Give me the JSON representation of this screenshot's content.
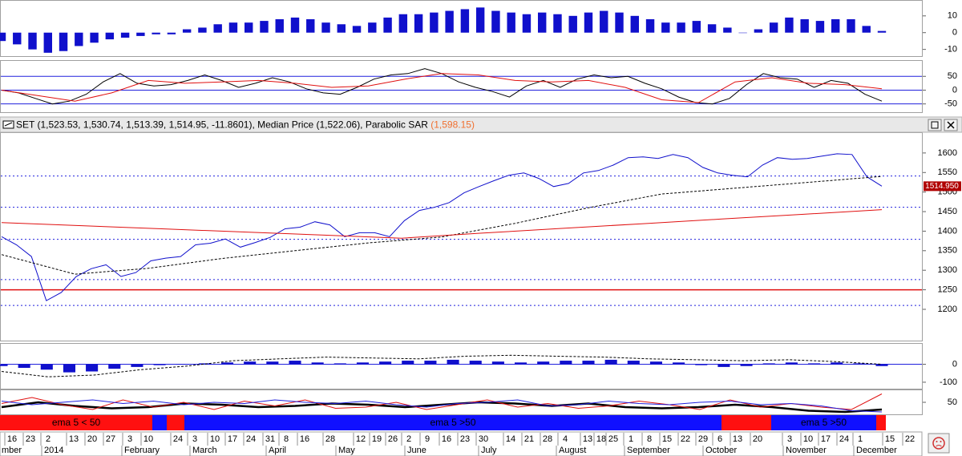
{
  "chart_data": [
    {
      "type": "bar",
      "color": "#1010cc",
      "values": [
        -5,
        -7,
        -10,
        -12,
        -11,
        -8,
        -6,
        -4,
        -3,
        -2,
        -1,
        -1,
        2,
        3,
        5,
        6,
        6,
        7,
        8,
        9,
        8,
        6,
        5,
        4,
        6,
        9,
        11,
        11,
        12,
        13,
        14,
        15,
        13,
        12,
        11,
        12,
        11,
        10,
        12,
        13,
        12,
        10,
        8,
        6,
        6,
        7,
        5,
        3,
        0,
        2,
        6,
        9,
        8,
        7,
        8,
        8,
        4,
        1
      ],
      "ylim": [
        -14,
        19
      ],
      "yticks": [
        10,
        0,
        -10
      ]
    },
    {
      "type": "line",
      "grid": true,
      "grid_color": "#2020dd",
      "series": [
        {
          "color": "#000000",
          "values": [
            0,
            -10,
            -30,
            -50,
            -40,
            -15,
            30,
            60,
            25,
            15,
            20,
            35,
            55,
            35,
            10,
            25,
            45,
            30,
            5,
            -10,
            -15,
            10,
            40,
            55,
            60,
            78,
            60,
            30,
            10,
            -5,
            -25,
            15,
            35,
            10,
            40,
            55,
            45,
            50,
            25,
            5,
            -25,
            -45,
            -50,
            -30,
            20,
            60,
            45,
            40,
            10,
            35,
            25,
            -15,
            -40
          ]
        },
        {
          "color": "#e01010",
          "values": [
            0,
            -20,
            -40,
            -10,
            35,
            25,
            30,
            35,
            25,
            10,
            15,
            40,
            60,
            55,
            35,
            30,
            35,
            10,
            -35,
            -45,
            30,
            45,
            25,
            20,
            5
          ]
        }
      ],
      "ylim": [
        -80,
        106
      ],
      "yticks": [
        50,
        0,
        -50
      ]
    },
    {
      "type": "line",
      "legend": [
        "SET (1,523.53, 1,530.74, 1,513.39, 1,514.95, -11.8601),",
        " Median Price (1,522.06),",
        " Parabolic SAR "
      ],
      "sar_label": "(1,598.15)",
      "sar_color": "#f07030",
      "series": [
        {
          "color": "#1010cc",
          "values": [
            1386,
            1365,
            1335,
            1222,
            1243,
            1284,
            1304,
            1314,
            1284,
            1294,
            1324,
            1331,
            1335,
            1365,
            1369,
            1380,
            1359,
            1371,
            1384,
            1406,
            1410,
            1424,
            1416,
            1386,
            1396,
            1396,
            1386,
            1427,
            1453,
            1461,
            1473,
            1498,
            1514,
            1529,
            1543,
            1549,
            1535,
            1514,
            1522,
            1549,
            1555,
            1569,
            1588,
            1590,
            1586,
            1596,
            1588,
            1563,
            1549,
            1543,
            1539,
            1569,
            1588,
            1584,
            1586,
            1592,
            1598,
            1596,
            1539,
            1515
          ]
        },
        {
          "color": "#000000",
          "dashed": true,
          "values": [
            1340,
            1290,
            1305,
            1330,
            1350,
            1370,
            1385,
            1420,
            1460,
            1495,
            1510,
            1525,
            1540
          ]
        },
        {
          "color": "#e01010",
          "values": [
            1422,
            1414,
            1406,
            1398,
            1390,
            1382,
            1395,
            1407,
            1419,
            1431,
            1443,
            1455
          ]
        }
      ],
      "levels": [
        1541,
        1461,
        1379,
        1276,
        1210
      ],
      "level_color": "#2020dd",
      "hline": 1250,
      "hline_color": "#e01010",
      "last_value": 1514.95,
      "last_value_label": "1514.950",
      "ylim": [
        1120,
        1651
      ],
      "yticks": [
        1600,
        1550,
        1500,
        1450,
        1400,
        1350,
        1300,
        1250,
        1200
      ]
    },
    {
      "type": "bar",
      "color": "#1010cc",
      "zero_color": "#2020dd",
      "values": [
        -10,
        -20,
        -30,
        -45,
        -40,
        -25,
        -15,
        -5,
        0,
        5,
        10,
        15,
        15,
        20,
        10,
        5,
        10,
        15,
        20,
        20,
        25,
        20,
        15,
        10,
        15,
        20,
        20,
        25,
        20,
        15,
        10,
        -5,
        -15,
        -10,
        5,
        10,
        5,
        10,
        5,
        -10
      ],
      "series": [
        {
          "color": "#000000",
          "dashed": true,
          "values": [
            -40,
            -70,
            -60,
            -30,
            -10,
            20,
            30,
            40,
            35,
            30,
            45,
            50,
            45,
            40,
            30,
            25,
            20,
            25,
            15,
            0
          ]
        }
      ],
      "ylim": [
        -136,
        114
      ],
      "yticks": [
        0,
        -100
      ]
    },
    {
      "type": "line",
      "series": [
        {
          "color": "#000000",
          "width": 2.5,
          "values": [
            30,
            50,
            35,
            25,
            30,
            45,
            40,
            30,
            35,
            45,
            40,
            30,
            40,
            50,
            45,
            35,
            45,
            30,
            25,
            30,
            40,
            30,
            15,
            10,
            20
          ]
        },
        {
          "color": "#e01010",
          "values": [
            45,
            70,
            40,
            20,
            60,
            30,
            50,
            20,
            55,
            35,
            60,
            25,
            30,
            50,
            20,
            40,
            60,
            30,
            45,
            25,
            35,
            55,
            40,
            20,
            60,
            30,
            45,
            30,
            20,
            85
          ]
        },
        {
          "color": "#2020dd",
          "values": [
            55,
            40,
            50,
            60,
            45,
            55,
            40,
            50,
            45,
            60,
            50,
            45,
            55,
            40,
            30,
            45,
            50,
            60,
            35,
            40,
            55,
            45,
            40,
            50,
            55,
            40,
            45,
            35,
            15,
            10
          ]
        }
      ],
      "ylim": [
        0,
        100
      ],
      "yticks": [
        50
      ]
    },
    {
      "type": "band",
      "segments": [
        {
          "color": "#ff1010",
          "label": "ema 5 < 50"
        },
        {
          "color": "#1010ff"
        },
        {
          "color": "#ff1010"
        },
        {
          "color": "#1010ff",
          "label": "ema 5 >50"
        },
        {
          "color": "#ff1010"
        },
        {
          "color": "#1010ff",
          "label": "ema 5 >50"
        },
        {
          "color": "#ff1010"
        }
      ]
    },
    {
      "type": "axis",
      "days": [
        "16",
        "23",
        "2",
        "13",
        "20",
        "27",
        "3",
        "10",
        "24",
        "3",
        "10",
        "17",
        "24",
        "31",
        "8",
        "16",
        "28",
        "12",
        "19",
        "26",
        "2",
        "9",
        "16",
        "23",
        "30",
        "14",
        "21",
        "28",
        "4",
        "13",
        "18",
        "25",
        "1",
        "8",
        "15",
        "22",
        "29",
        "6",
        "13",
        "20",
        "3",
        "10",
        "17",
        "24",
        "1",
        "15",
        "22"
      ],
      "months": [
        "mber",
        "2014",
        "February",
        "March",
        "April",
        "May",
        "June",
        "July",
        "August",
        "September",
        "October",
        "November",
        "December"
      ]
    }
  ]
}
